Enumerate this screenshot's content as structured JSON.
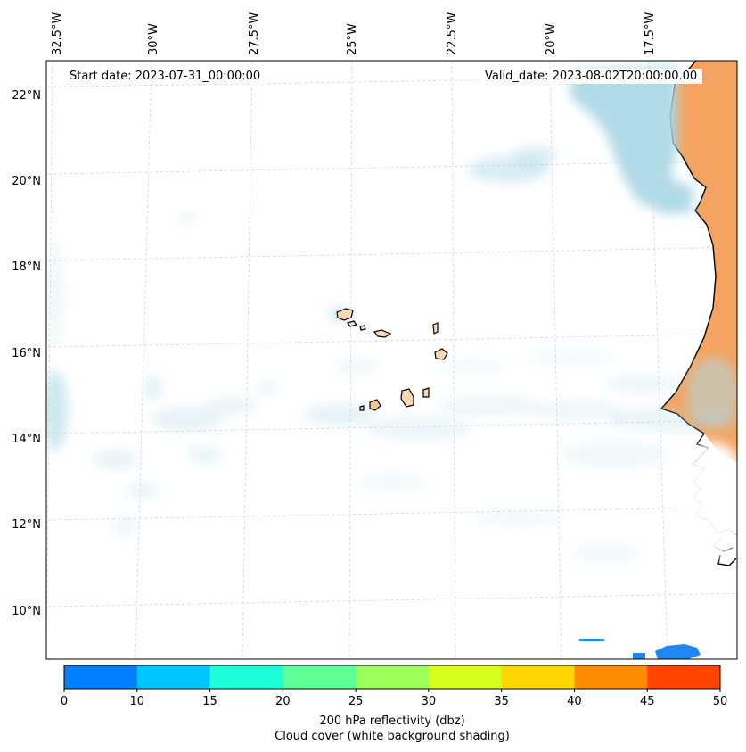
{
  "map": {
    "lon_labels": [
      "32.5°W",
      "30°W",
      "27.5°W",
      "25°W",
      "22.5°W",
      "20°W",
      "17.5°W"
    ],
    "lat_labels": [
      "22°N",
      "20°N",
      "18°N",
      "16°N",
      "14°N",
      "12°N",
      "10°N"
    ],
    "start_label": "Start date: 2023-07-31_00:00:00",
    "valid_label": "Valid_date: 2023-08-02T20:00:00.00",
    "land_color": "#f4a460",
    "cloud_color": "#add8e6",
    "coast_color": "#000000"
  },
  "colorbar": {
    "ticks": [
      "0",
      "10",
      "15",
      "20",
      "25",
      "30",
      "35",
      "40",
      "45",
      "50"
    ],
    "colors": [
      "#007fff",
      "#00c5ff",
      "#1effd9",
      "#5fff97",
      "#9dff5b",
      "#d9ff1e",
      "#ffd700",
      "#ff8c00",
      "#ff4500"
    ],
    "label": "200 hPa reflectivity (dbz)",
    "sublabel": "Cloud cover (white background shading)"
  }
}
